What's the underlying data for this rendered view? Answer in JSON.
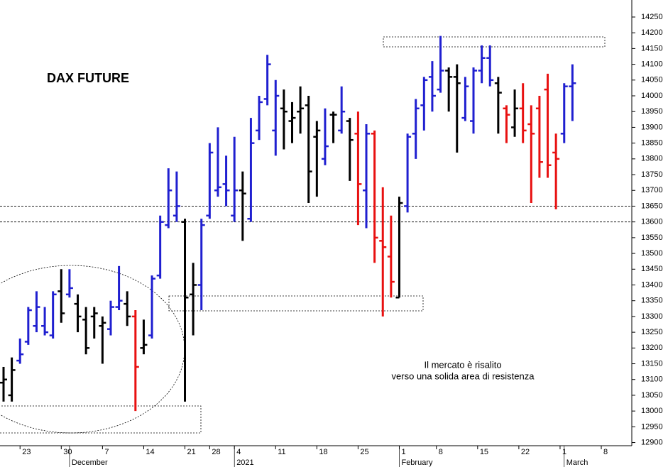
{
  "chart_data": {
    "type": "ohlc",
    "title": "DAX FUTURE",
    "annotation": [
      "Il mercato è risalito",
      "verso una solida area di resistenza"
    ],
    "x": [
      0,
      1,
      2,
      3,
      4,
      5,
      6,
      7,
      8,
      9,
      10,
      11,
      12,
      13,
      14,
      15,
      16,
      17,
      18,
      19,
      20,
      21,
      22,
      23,
      24,
      25,
      26,
      27,
      28,
      29,
      30,
      31,
      32,
      33,
      34,
      35,
      36,
      37,
      38,
      39,
      40,
      41,
      42,
      43,
      44,
      45,
      46,
      47,
      48,
      49,
      50,
      51,
      52,
      53,
      54,
      55,
      56,
      57,
      58,
      59,
      60,
      61,
      62,
      63,
      64,
      65,
      66,
      67,
      68,
      69
    ],
    "open": [
      13090,
      13050,
      13160,
      13220,
      13270,
      13270,
      13240,
      13380,
      13370,
      13340,
      13290,
      13300,
      13270,
      13260,
      13330,
      13340,
      13300,
      13200,
      13240,
      13430,
      13590,
      13620,
      13600,
      13370,
      13400,
      13620,
      13700,
      13720,
      13620,
      13700,
      13610,
      13890,
      13990,
      13890,
      13960,
      13920,
      13950,
      13970,
      13870,
      13800,
      13940,
      13890,
      13920,
      13880,
      13700,
      13880,
      13540,
      13490,
      13360,
      13650,
      13880,
      13970,
      14060,
      14020,
      14080,
      14060,
      13930,
      13920,
      14080,
      14120,
      14040,
      13960,
      13900,
      13960,
      13910,
      13960,
      14020,
      13820,
      13880,
      14030
    ],
    "high": [
      13140,
      13170,
      13230,
      13330,
      13380,
      13330,
      13380,
      13450,
      13450,
      13370,
      13330,
      13330,
      13300,
      13350,
      13460,
      13380,
      13320,
      13290,
      13430,
      13620,
      13770,
      13760,
      13610,
      13470,
      13610,
      13850,
      13900,
      13810,
      13870,
      13760,
      13930,
      14000,
      14130,
      14050,
      14020,
      13980,
      14030,
      14000,
      13920,
      13960,
      13950,
      14030,
      13930,
      13950,
      13910,
      13890,
      13710,
      13620,
      13680,
      13880,
      13990,
      14060,
      14110,
      14190,
      14090,
      14100,
      14060,
      14090,
      14160,
      14160,
      14060,
      13970,
      14020,
      14040,
      13970,
      14000,
      14070,
      13880,
      14040,
      14100
    ],
    "low": [
      13030,
      13030,
      13150,
      13210,
      13250,
      13240,
      13230,
      13280,
      13360,
      13250,
      13180,
      13230,
      13150,
      13240,
      13320,
      13270,
      13000,
      13180,
      13230,
      13420,
      13580,
      13600,
      13030,
      13240,
      13320,
      13610,
      13680,
      13650,
      13600,
      13540,
      13600,
      13860,
      13970,
      13810,
      13830,
      13850,
      13880,
      13660,
      13680,
      13780,
      13850,
      13880,
      13730,
      13590,
      13580,
      13470,
      13300,
      13360,
      13360,
      13630,
      13800,
      13890,
      13950,
      14010,
      13950,
      13820,
      13920,
      13880,
      14040,
      14030,
      13880,
      13850,
      13870,
      13850,
      13660,
      13740,
      13740,
      13640,
      13850,
      13920
    ],
    "close": [
      13100,
      13130,
      13180,
      13320,
      13330,
      13250,
      13370,
      13310,
      13390,
      13300,
      13200,
      13310,
      13280,
      13330,
      13350,
      13300,
      13140,
      13210,
      13420,
      13600,
      13700,
      13650,
      13360,
      13400,
      13590,
      13820,
      13710,
      13700,
      13700,
      13690,
      13850,
      13980,
      14100,
      14000,
      13950,
      13930,
      13960,
      13760,
      13890,
      13840,
      13940,
      13950,
      13860,
      13720,
      13880,
      13550,
      13520,
      13410,
      13660,
      13870,
      13960,
      14050,
      14000,
      14080,
      14060,
      14040,
      14030,
      14080,
      14120,
      14050,
      14010,
      13940,
      13960,
      13890,
      13880,
      13790,
      13780,
      13800,
      14030,
      14040
    ],
    "colors": [
      "#000000",
      "#000000",
      "#1f1fd0",
      "#1f1fd0",
      "#1f1fd0",
      "#1f1fd0",
      "#1f1fd0",
      "#000000",
      "#1f1fd0",
      "#000000",
      "#000000",
      "#000000",
      "#000000",
      "#1f1fd0",
      "#1f1fd0",
      "#000000",
      "#e81010",
      "#000000",
      "#1f1fd0",
      "#1f1fd0",
      "#1f1fd0",
      "#1f1fd0",
      "#000000",
      "#000000",
      "#1f1fd0",
      "#1f1fd0",
      "#1f1fd0",
      "#1f1fd0",
      "#1f1fd0",
      "#000000",
      "#1f1fd0",
      "#1f1fd0",
      "#1f1fd0",
      "#1f1fd0",
      "#000000",
      "#000000",
      "#000000",
      "#000000",
      "#000000",
      "#1f1fd0",
      "#000000",
      "#1f1fd0",
      "#000000",
      "#e81010",
      "#1f1fd0",
      "#e81010",
      "#e81010",
      "#e81010",
      "#000000",
      "#1f1fd0",
      "#1f1fd0",
      "#1f1fd0",
      "#1f1fd0",
      "#1f1fd0",
      "#000000",
      "#000000",
      "#1f1fd0",
      "#1f1fd0",
      "#1f1fd0",
      "#1f1fd0",
      "#000000",
      "#e81010",
      "#000000",
      "#e81010",
      "#e81010",
      "#e81010",
      "#e81010",
      "#e81010",
      "#1f1fd0",
      "#1f1fd0"
    ],
    "xlim": [
      -0.43,
      76.2
    ],
    "ylim": [
      12890,
      14304
    ],
    "yticks": [
      12900,
      12950,
      13000,
      13050,
      13100,
      13150,
      13200,
      13250,
      13300,
      13350,
      13400,
      13450,
      13500,
      13550,
      13600,
      13650,
      13700,
      13750,
      13800,
      13850,
      13900,
      13950,
      14000,
      14050,
      14100,
      14150,
      14200,
      14250
    ],
    "xticks": [
      {
        "value": 2,
        "label": "23"
      },
      {
        "value": 7,
        "label": "30"
      },
      {
        "value": 12,
        "label": "7"
      },
      {
        "value": 17,
        "label": "14"
      },
      {
        "value": 22,
        "label": "21"
      },
      {
        "value": 25,
        "label": "28"
      },
      {
        "value": 28,
        "label": "4"
      },
      {
        "value": 33,
        "label": "11"
      },
      {
        "value": 38,
        "label": "18"
      },
      {
        "value": 43,
        "label": "25"
      },
      {
        "value": 48,
        "label": "1"
      },
      {
        "value": 52.5,
        "label": "8"
      },
      {
        "value": 57.5,
        "label": "15"
      },
      {
        "value": 62.5,
        "label": "22"
      },
      {
        "value": 67.5,
        "label": "1"
      },
      {
        "value": 72.5,
        "label": "8"
      }
    ],
    "month_labels": [
      {
        "value": 8,
        "label": "December"
      },
      {
        "value": 28,
        "label": "2021"
      },
      {
        "value": 48,
        "label": "February"
      },
      {
        "value": 68,
        "label": "March"
      }
    ],
    "hlines": [
      13650,
      13600
    ]
  }
}
